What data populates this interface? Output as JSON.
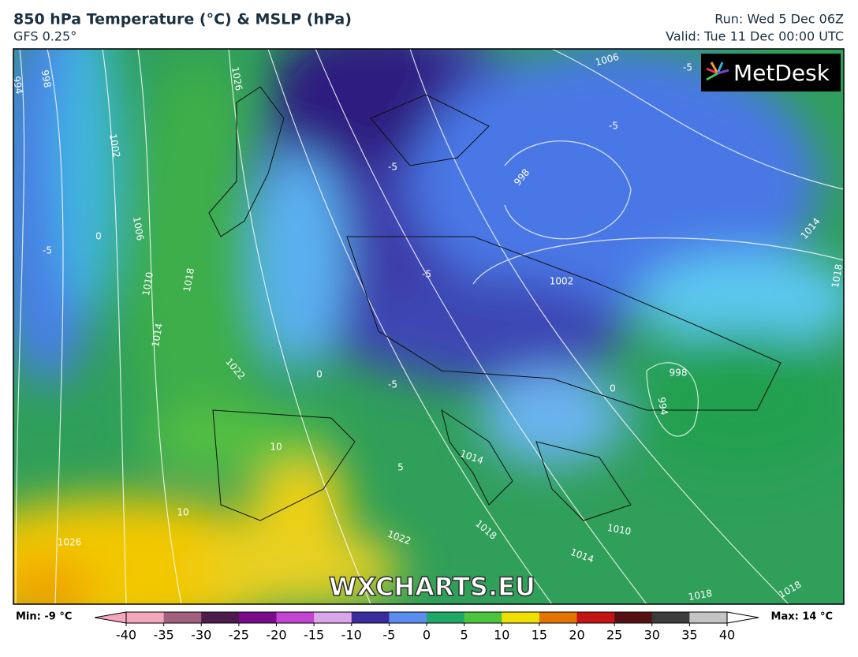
{
  "header": {
    "title": "850 hPa Temperature (°C) & MSLP (hPa)",
    "model": "GFS 0.25°",
    "run": "Run: Wed 5 Dec 06Z",
    "valid": "Valid: Tue 11 Dec 00:00 UTC"
  },
  "logo": "MetDesk",
  "watermark": "WXCHARTS.EU",
  "legend": {
    "min_label": "Min: -9 °C",
    "max_label": "Max: 14 °C",
    "range": [
      -40,
      40
    ],
    "ticks": [
      -40,
      -35,
      -30,
      -25,
      -20,
      -15,
      -10,
      -5,
      0,
      5,
      10,
      15,
      20,
      25,
      30,
      35,
      40
    ],
    "colors": [
      "#f4a6bd",
      "#a0607e",
      "#4c1c4c",
      "#7a0c8c",
      "#c244d2",
      "#dca6ea",
      "#3b2c9c",
      "#5b8cf0",
      "#1fa868",
      "#4cc43e",
      "#f0e000",
      "#e47400",
      "#c41414",
      "#561212",
      "#3c3c3c",
      "#c4c4c4"
    ]
  },
  "map_labels": [
    "994",
    "998",
    "1026",
    "1006",
    "-5",
    "1002",
    "1006",
    "0",
    "-5",
    "1010",
    "1018",
    "1014",
    "1022",
    "0",
    "-5",
    "998",
    "-5",
    "1002",
    "1014",
    "1018",
    "-5",
    "-5",
    "998",
    "994",
    "0",
    "10",
    "5",
    "1014",
    "10",
    "1026",
    "1022",
    "1018",
    "1010",
    "1014",
    "1018",
    "1018"
  ]
}
